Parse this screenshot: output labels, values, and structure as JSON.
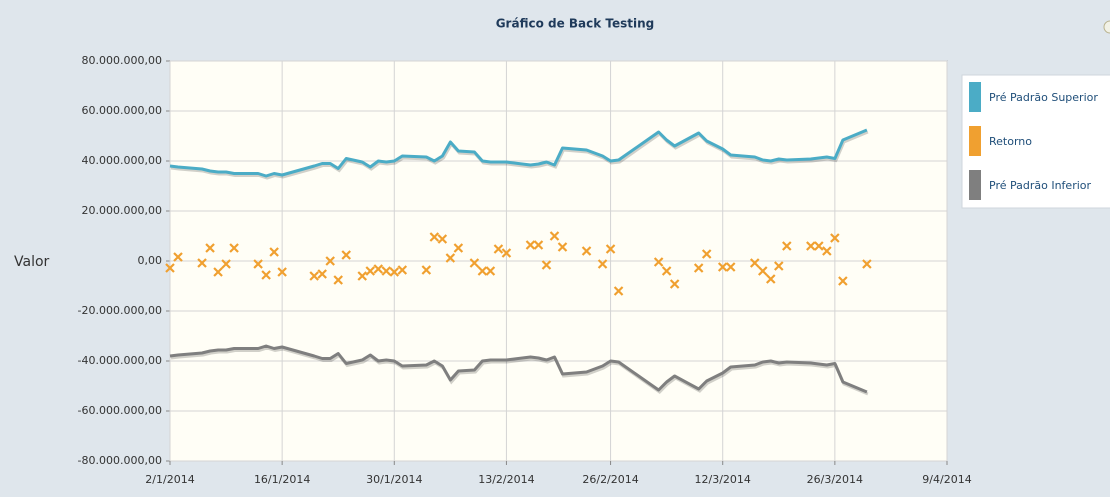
{
  "chart_data": {
    "type": "line",
    "title": "Gráfico de Back Testing",
    "y_label": "Valor",
    "x": [
      "2/1/2014",
      "3/1/2014",
      "6/1/2014",
      "7/1/2014",
      "8/1/2014",
      "9/1/2014",
      "10/1/2014",
      "13/1/2014",
      "14/1/2014",
      "15/1/2014",
      "16/1/2014",
      "20/1/2014",
      "21/1/2014",
      "22/1/2014",
      "23/1/2014",
      "24/1/2014",
      "26/1/2014",
      "27/1/2014",
      "28/1/2014",
      "29/1/2014",
      "30/1/2014",
      "31/1/2014",
      "3/2/2014",
      "4/2/2014",
      "5/2/2014",
      "6/2/2014",
      "7/2/2014",
      "9/2/2014",
      "10/2/2014",
      "11/2/2014",
      "12/2/2014",
      "13/2/2014",
      "16/2/2014",
      "17/2/2014",
      "18/2/2014",
      "19/2/2014",
      "20/2/2014",
      "23/2/2014",
      "25/2/2014",
      "26/2/2014",
      "27/2/2014",
      "4/3/2014",
      "5/3/2014",
      "6/3/2014",
      "9/3/2014",
      "10/3/2014",
      "12/3/2014",
      "13/3/2014",
      "16/3/2014",
      "17/3/2014",
      "18/3/2014",
      "19/3/2014",
      "20/3/2014",
      "23/3/2014",
      "24/3/2014",
      "25/3/2014",
      "26/3/2014",
      "27/3/2014",
      "30/3/2014"
    ],
    "series": [
      {
        "name": "Pré Padrão Superior",
        "color": "#4bacc6",
        "style": "line",
        "values": [
          38000000,
          37600000,
          36800000,
          36000000,
          35600000,
          35600000,
          35000000,
          35000000,
          34000000,
          35000000,
          34400000,
          38000000,
          39000000,
          39000000,
          37000000,
          41000000,
          39600000,
          37600000,
          40000000,
          39600000,
          40000000,
          42000000,
          41600000,
          40000000,
          42000000,
          47600000,
          44000000,
          43600000,
          40000000,
          39600000,
          39600000,
          39600000,
          38400000,
          38800000,
          39600000,
          38400000,
          45200000,
          44400000,
          42000000,
          40000000,
          40400000,
          51600000,
          48400000,
          46000000,
          51200000,
          48000000,
          44800000,
          42400000,
          41600000,
          40400000,
          40000000,
          40800000,
          40400000,
          40800000,
          41200000,
          41600000,
          41000000,
          48400000,
          52400000
        ]
      },
      {
        "name": "Retorno",
        "color": "#f0a030",
        "style": "scatter",
        "values": [
          -2800000,
          1600000,
          -800000,
          5200000,
          -4400000,
          -1200000,
          5200000,
          -1200000,
          -5600000,
          3600000,
          -4400000,
          -6000000,
          -5200000,
          0,
          -7600000,
          2400000,
          -6000000,
          -4000000,
          -3200000,
          -4000000,
          -4400000,
          -3600000,
          -3600000,
          9600000,
          8800000,
          1200000,
          5200000,
          -800000,
          -4000000,
          -4000000,
          4800000,
          3200000,
          6400000,
          6400000,
          -1600000,
          10000000,
          5600000,
          4000000,
          -1200000,
          4800000,
          -12000000,
          -400000,
          -4000000,
          -9200000,
          -2800000,
          2800000,
          -2400000,
          -2400000,
          -800000,
          -4000000,
          -7200000,
          -2000000,
          6000000,
          6000000,
          6000000,
          4000000,
          9200000,
          -8000000,
          -1200000
        ]
      },
      {
        "name": "Pré Padrão Inferior",
        "color": "#7f7f7f",
        "style": "line",
        "values": [
          -38000000,
          -37600000,
          -36800000,
          -36000000,
          -35600000,
          -35600000,
          -35000000,
          -35000000,
          -34000000,
          -35000000,
          -34400000,
          -38000000,
          -39000000,
          -39000000,
          -37000000,
          -41000000,
          -39600000,
          -37600000,
          -40000000,
          -39600000,
          -40000000,
          -42000000,
          -41600000,
          -40000000,
          -42000000,
          -47600000,
          -44000000,
          -43600000,
          -40000000,
          -39600000,
          -39600000,
          -39600000,
          -38400000,
          -38800000,
          -39600000,
          -38400000,
          -45200000,
          -44400000,
          -42000000,
          -40000000,
          -40400000,
          -51600000,
          -48400000,
          -46000000,
          -51200000,
          -48000000,
          -44800000,
          -42400000,
          -41600000,
          -40400000,
          -40000000,
          -40800000,
          -40400000,
          -40800000,
          -41200000,
          -41600000,
          -41000000,
          -48400000,
          -52400000
        ]
      }
    ],
    "xlim": [
      "2/1/2014",
      "9/4/2014"
    ],
    "xticks": [
      "2/1/2014",
      "16/1/2014",
      "30/1/2014",
      "13/2/2014",
      "26/2/2014",
      "12/3/2014",
      "26/3/2014",
      "9/4/2014"
    ],
    "ylim": [
      -80000000,
      80000000
    ],
    "yticks": [
      {
        "value": -80000000,
        "label": "-80.000.000,00"
      },
      {
        "value": -60000000,
        "label": "-60.000.000,00"
      },
      {
        "value": -40000000,
        "label": "-40.000.000,00"
      },
      {
        "value": -20000000,
        "label": "-20.000.000,00"
      },
      {
        "value": 0,
        "label": "0,00"
      },
      {
        "value": 20000000,
        "label": "20.000.000,00"
      },
      {
        "value": 40000000,
        "label": "40.000.000,00"
      },
      {
        "value": 60000000,
        "label": "60.000.000,00"
      },
      {
        "value": 80000000,
        "label": "80.000.000,00"
      }
    ],
    "grid": true,
    "legend": "right"
  }
}
